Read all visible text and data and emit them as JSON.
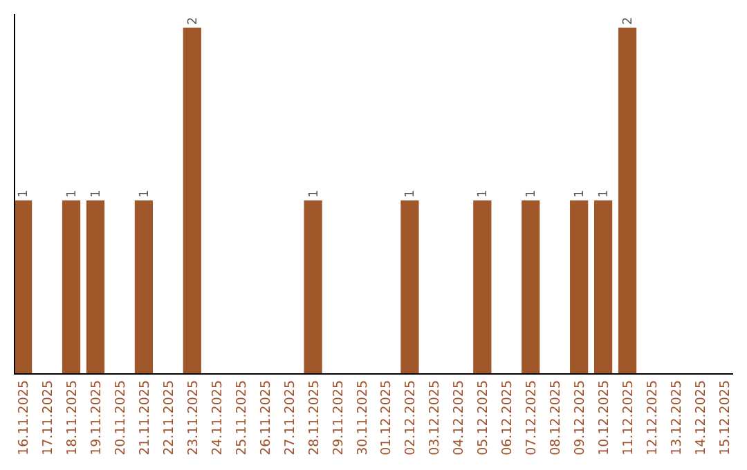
{
  "chart_data": {
    "type": "bar",
    "categories": [
      "16.11.2025",
      "17.11.2025",
      "18.11.2025",
      "19.11.2025",
      "20.11.2025",
      "21.11.2025",
      "22.11.2025",
      "23.11.2025",
      "24.11.2025",
      "25.11.2025",
      "26.11.2025",
      "27.11.2025",
      "28.11.2025",
      "29.11.2025",
      "30.11.2025",
      "01.12.2025",
      "02.12.2025",
      "03.12.2025",
      "04.12.2025",
      "05.12.2025",
      "06.12.2025",
      "07.12.2025",
      "08.12.2025",
      "09.12.2025",
      "10.12.2025",
      "11.12.2025",
      "12.12.2025",
      "13.12.2025",
      "14.12.2025",
      "15.12.2025"
    ],
    "values": [
      1,
      0,
      1,
      1,
      0,
      1,
      0,
      2,
      0,
      0,
      0,
      0,
      1,
      0,
      0,
      0,
      1,
      0,
      0,
      1,
      0,
      1,
      0,
      1,
      1,
      2,
      0,
      0,
      0,
      0
    ],
    "value_labels": [
      "1",
      null,
      "1",
      "1",
      null,
      "1",
      null,
      "2",
      null,
      null,
      null,
      null,
      "1",
      null,
      null,
      null,
      "1",
      null,
      null,
      "1",
      null,
      "1",
      null,
      "1",
      "1",
      "2",
      null,
      null,
      null,
      null
    ],
    "color": "#a0572a",
    "tick_labels": "x"
  }
}
